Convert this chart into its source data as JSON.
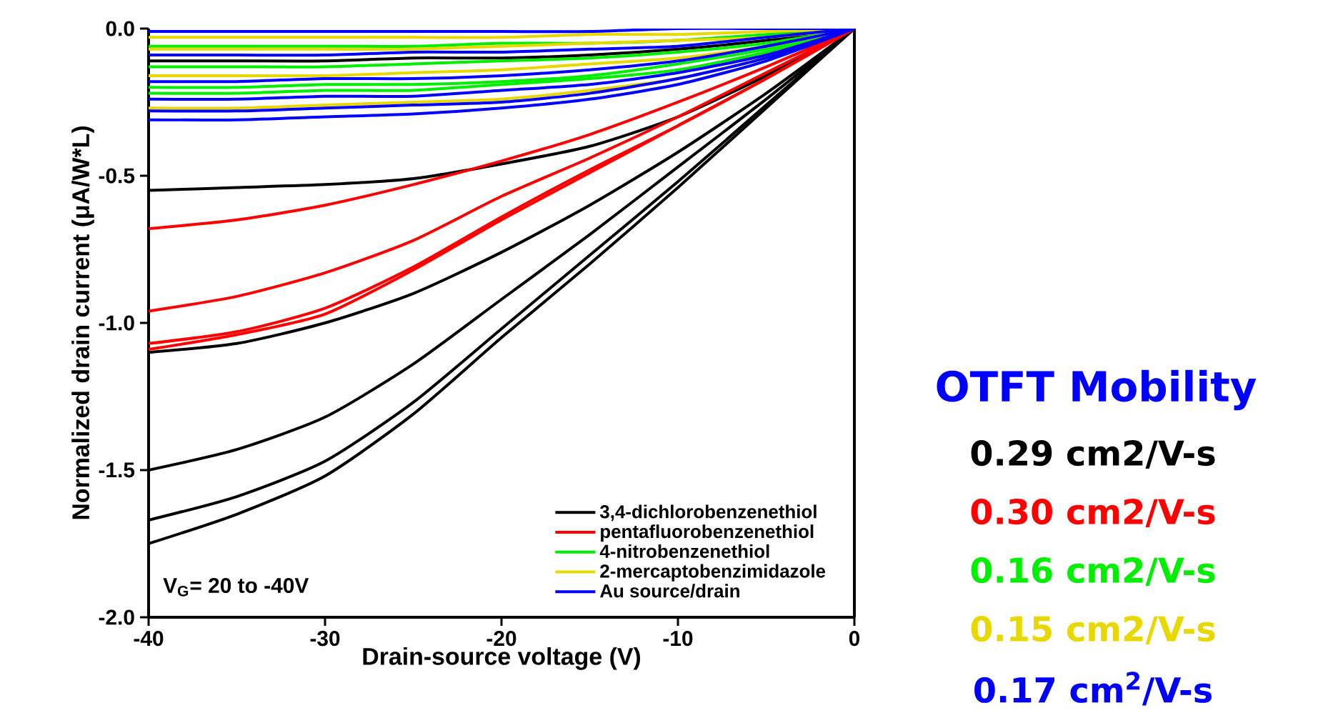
{
  "chart_data": {
    "type": "line",
    "xlabel": "Drain-source voltage (V)",
    "ylabel": "Normalized drain current (μA/W*L)",
    "x": [
      -40,
      -35,
      -30,
      -25,
      -20,
      -15,
      -10,
      -5,
      0
    ],
    "xlim": [
      -40,
      0
    ],
    "xticks": [
      -40,
      -30,
      -20,
      -10,
      0
    ],
    "ylim": [
      -2,
      0
    ],
    "yticks": [
      {
        "value": -2,
        "label": "-2.0"
      },
      {
        "value": -1.5,
        "label": "-1.5"
      },
      {
        "value": -1,
        "label": "-1.0"
      },
      {
        "value": -0.5,
        "label": "-0.5"
      },
      {
        "value": 0,
        "label": "0.0"
      }
    ],
    "legend": "bottom right",
    "grid": false,
    "marker": "none",
    "line_style": "solid",
    "series": [
      {
        "name": "3,4-dichlorobenzenethiol",
        "color": "#000000",
        "values": [
          -0.55,
          -0.54,
          -0.53,
          -0.51,
          -0.46,
          -0.4,
          -0.3,
          -0.16,
          0
        ]
      },
      {
        "name": "pentafluorobenzenethiol",
        "color": "#ff0000",
        "values": [
          -0.68,
          -0.65,
          -0.6,
          -0.53,
          -0.45,
          -0.36,
          -0.25,
          -0.13,
          0
        ]
      },
      {
        "name": "4-nitrobenzenethiol",
        "color": "#00ee00",
        "values": [
          -0.06,
          -0.06,
          -0.06,
          -0.06,
          -0.05,
          -0.05,
          -0.04,
          -0.02,
          0
        ]
      },
      {
        "name": "2-mercaptobenzimidazole",
        "color": "#e8d800",
        "values": [
          -0.03,
          -0.03,
          -0.03,
          -0.03,
          -0.03,
          -0.02,
          -0.02,
          -0.01,
          0
        ]
      },
      {
        "name": "Au source/drain",
        "color": "#0000ff",
        "values": [
          -0.01,
          -0.01,
          -0.01,
          -0.01,
          -0.01,
          -0.01,
          0,
          0,
          0
        ]
      },
      {
        "color": "#000000",
        "values": [
          -1.1,
          -1.07,
          -1.0,
          -0.9,
          -0.76,
          -0.6,
          -0.42,
          -0.22,
          0
        ]
      },
      {
        "color": "#000000",
        "values": [
          -1.5,
          -1.43,
          -1.32,
          -1.14,
          -0.92,
          -0.7,
          -0.47,
          -0.24,
          0
        ]
      },
      {
        "color": "#000000",
        "values": [
          -1.67,
          -1.59,
          -1.47,
          -1.27,
          -1.02,
          -0.77,
          -0.52,
          -0.26,
          0
        ]
      },
      {
        "color": "#000000",
        "values": [
          -1.75,
          -1.65,
          -1.52,
          -1.31,
          -1.05,
          -0.8,
          -0.54,
          -0.27,
          0
        ]
      },
      {
        "color": "#000000",
        "values": [
          -0.11,
          -0.11,
          -0.11,
          -0.1,
          -0.1,
          -0.09,
          -0.07,
          -0.04,
          0
        ]
      },
      {
        "color": "#ff0000",
        "values": [
          -0.96,
          -0.91,
          -0.83,
          -0.72,
          -0.57,
          -0.44,
          -0.3,
          -0.15,
          0
        ]
      },
      {
        "color": "#ff0000",
        "values": [
          -1.07,
          -1.03,
          -0.95,
          -0.81,
          -0.64,
          -0.48,
          -0.33,
          -0.17,
          0
        ]
      },
      {
        "color": "#ff0000",
        "values": [
          -1.09,
          -1.04,
          -0.97,
          -0.82,
          -0.65,
          -0.49,
          -0.33,
          -0.17,
          0
        ]
      },
      {
        "color": "#00ee00",
        "values": [
          -0.13,
          -0.13,
          -0.13,
          -0.12,
          -0.11,
          -0.1,
          -0.08,
          -0.05,
          0
        ]
      },
      {
        "color": "#00ee00",
        "values": [
          -0.2,
          -0.2,
          -0.19,
          -0.19,
          -0.18,
          -0.16,
          -0.12,
          -0.07,
          0
        ]
      },
      {
        "color": "#00ee00",
        "values": [
          -0.22,
          -0.22,
          -0.21,
          -0.21,
          -0.19,
          -0.17,
          -0.14,
          -0.08,
          0
        ]
      },
      {
        "color": "#e8d800",
        "values": [
          -0.07,
          -0.07,
          -0.07,
          -0.07,
          -0.06,
          -0.05,
          -0.04,
          -0.03,
          0
        ]
      },
      {
        "color": "#e8d800",
        "values": [
          -0.16,
          -0.16,
          -0.16,
          -0.15,
          -0.14,
          -0.12,
          -0.1,
          -0.06,
          0
        ]
      },
      {
        "color": "#e8d800",
        "values": [
          -0.27,
          -0.27,
          -0.26,
          -0.25,
          -0.24,
          -0.21,
          -0.17,
          -0.1,
          0
        ]
      },
      {
        "color": "#0000ff",
        "values": [
          -0.09,
          -0.09,
          -0.09,
          -0.08,
          -0.08,
          -0.07,
          -0.06,
          -0.03,
          0
        ]
      },
      {
        "color": "#0000ff",
        "values": [
          -0.18,
          -0.18,
          -0.17,
          -0.17,
          -0.16,
          -0.14,
          -0.11,
          -0.06,
          0
        ]
      },
      {
        "color": "#0000ff",
        "values": [
          -0.24,
          -0.24,
          -0.23,
          -0.23,
          -0.21,
          -0.19,
          -0.15,
          -0.09,
          0
        ]
      },
      {
        "color": "#0000ff",
        "values": [
          -0.28,
          -0.28,
          -0.27,
          -0.26,
          -0.25,
          -0.22,
          -0.17,
          -0.1,
          0
        ]
      },
      {
        "color": "#0000ff",
        "values": [
          -0.31,
          -0.31,
          -0.3,
          -0.29,
          -0.27,
          -0.24,
          -0.19,
          -0.11,
          0
        ]
      }
    ],
    "annotations": [
      "V$_{G}$= 20 to -40V",
      "OTFT Mobility",
      "0.29 cm2/V-s",
      "0.30 cm2/V-s",
      "0.16 cm2/V-s",
      "0.15 cm2/V-s",
      "0.17 cm$^{2}$/V-s"
    ]
  }
}
